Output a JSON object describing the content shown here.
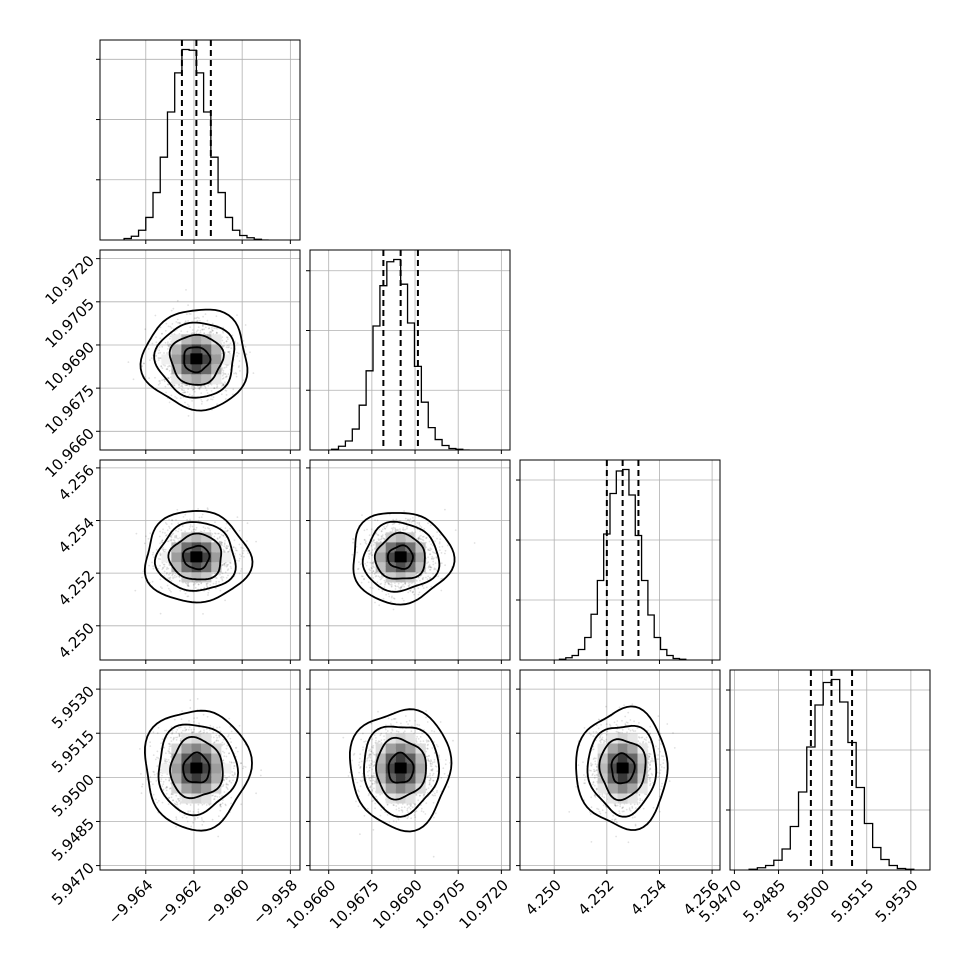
{
  "chart_data": {
    "type": "corner",
    "parameters": [
      {
        "range": [
          -9.9659,
          -9.9576
        ],
        "ticks": [
          -9.964,
          -9.962,
          -9.96,
          -9.958
        ],
        "tick_labels": [
          "−9.964",
          "−9.962",
          "−9.960",
          "−9.958"
        ],
        "quantiles": [
          -9.9625,
          -9.9619,
          -9.9613
        ],
        "mean": -9.9619,
        "sd": 0.00075,
        "hist_counts": [
          2,
          5,
          13,
          30,
          63,
          110,
          170,
          222,
          253,
          252,
          222,
          170,
          110,
          63,
          30,
          13,
          6,
          3,
          1,
          0
        ]
      },
      {
        "range": [
          10.96535,
          10.9723
        ],
        "ticks": [
          10.966,
          10.9675,
          10.969,
          10.9705,
          10.972
        ],
        "tick_labels": [
          "10.9660",
          "10.9675",
          "10.9690",
          "10.9705",
          "10.9720"
        ],
        "quantiles": [
          10.9679,
          10.9685,
          10.9691
        ],
        "mean": 10.9685,
        "sd": 0.0006,
        "hist_counts": [
          1,
          5,
          12,
          28,
          60,
          106,
          166,
          220,
          252,
          255,
          222,
          170,
          112,
          64,
          30,
          14,
          6,
          2,
          1,
          0
        ]
      },
      {
        "range": [
          4.2487,
          4.2563
        ],
        "ticks": [
          4.25,
          4.252,
          4.254,
          4.256
        ],
        "tick_labels": [
          "4.250",
          "4.252",
          "4.254",
          "4.256"
        ],
        "quantiles": [
          4.252,
          4.2526,
          4.2532
        ],
        "mean": 4.2526,
        "sd": 0.0006,
        "hist_counts": [
          1,
          3,
          6,
          14,
          30,
          61,
          106,
          168,
          222,
          252,
          254,
          220,
          166,
          106,
          60,
          30,
          14,
          6,
          2,
          1
        ]
      },
      {
        "range": [
          5.94685,
          5.95365
        ],
        "ticks": [
          5.947,
          5.9485,
          5.95,
          5.9515,
          5.953
        ],
        "tick_labels": [
          "5.9470",
          "5.9485",
          "5.9500",
          "5.9515",
          "5.9530"
        ],
        "quantiles": [
          5.9496,
          5.9503,
          5.951
        ],
        "mean": 5.9503,
        "sd": 0.0007,
        "hist_counts": [
          1,
          3,
          6,
          13,
          28,
          58,
          104,
          164,
          220,
          250,
          254,
          224,
          170,
          110,
          62,
          30,
          14,
          6,
          2,
          1
        ]
      }
    ],
    "contour_levels_sigma": [
      0.5,
      1.0,
      1.5,
      2.0
    ],
    "axis_labels": [],
    "title": ""
  }
}
